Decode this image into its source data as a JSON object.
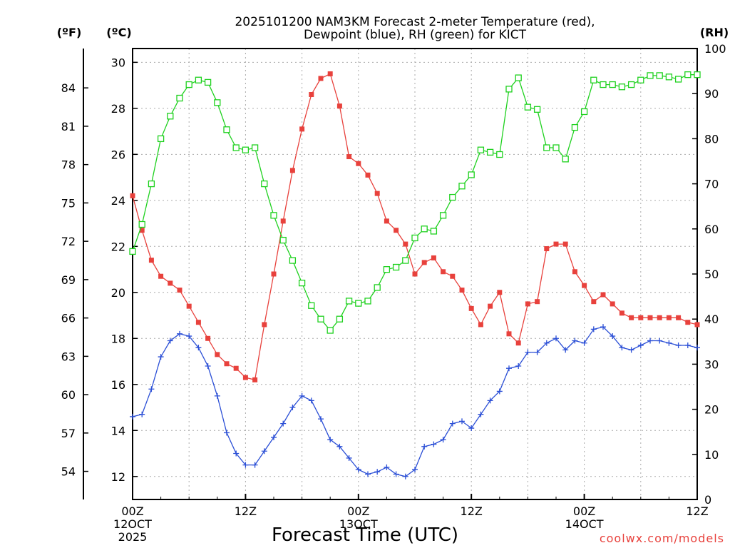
{
  "chart_data": {
    "type": "line",
    "title_line1": "2025101200 NAM3KM Forecast 2-meter Temperature (red),",
    "title_line2": "Dewpoint (blue), RH (green) for KICT",
    "xlabel": "Forecast Time (UTC)",
    "credit": "coolwx.com/models",
    "unit_f": "(ºF)",
    "unit_c": "(ºC)",
    "unit_rh": "(RH)",
    "x_range_hours": [
      0,
      60
    ],
    "y_range_c": [
      11,
      30.6
    ],
    "y_range_rh": [
      0,
      100
    ],
    "x_ticks": [
      {
        "hour": 0,
        "lines": [
          "00Z",
          "12OCT",
          "2025"
        ]
      },
      {
        "hour": 12,
        "lines": [
          "12Z"
        ]
      },
      {
        "hour": 24,
        "lines": [
          "00Z",
          "13OCT"
        ]
      },
      {
        "hour": 36,
        "lines": [
          "12Z"
        ]
      },
      {
        "hour": 48,
        "lines": [
          "00Z",
          "14OCT"
        ]
      },
      {
        "hour": 60,
        "lines": [
          "12Z"
        ]
      }
    ],
    "c_ticks": [
      12,
      14,
      16,
      18,
      20,
      22,
      24,
      26,
      28,
      30
    ],
    "f_ticks": [
      54,
      57,
      60,
      63,
      66,
      69,
      72,
      75,
      78,
      81,
      84
    ],
    "rh_ticks": [
      0,
      10,
      20,
      30,
      40,
      50,
      60,
      70,
      80,
      90,
      100
    ],
    "series": [
      {
        "name": "2-meter Temperature",
        "color": "#e8413c",
        "marker": "filled-square",
        "axis": "celsius",
        "x": [
          0,
          1,
          2,
          3,
          4,
          5,
          6,
          7,
          8,
          9,
          10,
          11,
          12,
          13,
          14,
          15,
          16,
          17,
          18,
          19,
          20,
          21,
          22,
          23,
          24,
          25,
          26,
          27,
          28,
          29,
          30,
          31,
          32,
          33,
          34,
          35,
          36,
          37,
          38,
          39,
          40,
          41,
          42,
          43,
          44,
          45,
          46,
          47,
          48,
          49,
          50,
          51,
          52,
          53,
          54,
          55,
          56,
          57,
          58,
          59,
          60
        ],
        "values": [
          24.2,
          22.7,
          21.4,
          20.7,
          20.4,
          20.1,
          19.4,
          18.7,
          18.0,
          17.3,
          16.9,
          16.7,
          16.3,
          16.2,
          18.6,
          20.8,
          23.1,
          25.3,
          27.1,
          28.6,
          29.3,
          29.5,
          28.1,
          25.9,
          25.6,
          25.1,
          24.3,
          23.1,
          22.7,
          22.1,
          20.8,
          21.3,
          21.5,
          20.9,
          20.7,
          20.1,
          19.3,
          18.6,
          19.4,
          20.0,
          18.2,
          17.8,
          19.5,
          19.6,
          21.9,
          22.1,
          22.1,
          20.9,
          20.3,
          19.6,
          19.9,
          19.5,
          19.1,
          18.9,
          18.9,
          18.9,
          18.9,
          18.9,
          18.9,
          18.7,
          18.6
        ]
      },
      {
        "name": "Dewpoint",
        "color": "#2b4fd6",
        "marker": "plus",
        "axis": "celsius",
        "x": [
          0,
          1,
          2,
          3,
          4,
          5,
          6,
          7,
          8,
          9,
          10,
          11,
          12,
          13,
          14,
          15,
          16,
          17,
          18,
          19,
          20,
          21,
          22,
          23,
          24,
          25,
          26,
          27,
          28,
          29,
          30,
          31,
          32,
          33,
          34,
          35,
          36,
          37,
          38,
          39,
          40,
          41,
          42,
          43,
          44,
          45,
          46,
          47,
          48,
          49,
          50,
          51,
          52,
          53,
          54,
          55,
          56,
          57,
          58,
          59,
          60
        ],
        "values": [
          14.6,
          14.7,
          15.8,
          17.2,
          17.9,
          18.2,
          18.1,
          17.6,
          16.8,
          15.5,
          13.9,
          13.0,
          12.5,
          12.5,
          13.1,
          13.7,
          14.3,
          15.0,
          15.5,
          15.3,
          14.5,
          13.6,
          13.3,
          12.8,
          12.3,
          12.1,
          12.2,
          12.4,
          12.1,
          12.0,
          12.3,
          13.3,
          13.4,
          13.6,
          14.3,
          14.4,
          14.1,
          14.7,
          15.3,
          15.7,
          16.7,
          16.8,
          17.4,
          17.4,
          17.8,
          18.0,
          17.5,
          17.9,
          17.8,
          18.4,
          18.5,
          18.1,
          17.6,
          17.5,
          17.7,
          17.9,
          17.9,
          17.8,
          17.7,
          17.7,
          17.6
        ]
      },
      {
        "name": "RH",
        "color": "#1ed11e",
        "marker": "open-square",
        "axis": "rh",
        "x": [
          0,
          1,
          2,
          3,
          4,
          5,
          6,
          7,
          8,
          9,
          10,
          11,
          12,
          13,
          14,
          15,
          16,
          17,
          18,
          19,
          20,
          21,
          22,
          23,
          24,
          25,
          26,
          27,
          28,
          29,
          30,
          31,
          32,
          33,
          34,
          35,
          36,
          37,
          38,
          39,
          40,
          41,
          42,
          43,
          44,
          45,
          46,
          47,
          48,
          49,
          50,
          51,
          52,
          53,
          54,
          55,
          56,
          57,
          58,
          59,
          60
        ],
        "values": [
          55,
          61,
          70,
          80,
          85,
          89,
          92,
          93,
          92.5,
          88,
          82,
          78,
          77.5,
          78,
          70,
          63,
          57.5,
          53,
          48,
          43,
          40,
          37.5,
          40,
          44,
          43.5,
          44,
          47,
          51,
          51.5,
          53,
          58,
          60,
          59.5,
          63,
          67,
          69.5,
          72,
          77.5,
          77,
          76.5,
          91,
          93.5,
          87,
          86.5,
          78,
          78,
          75.5,
          82.5,
          86,
          93,
          92,
          92,
          91.5,
          92,
          93,
          94,
          94,
          93.7,
          93.2,
          94.2,
          94.2
        ]
      }
    ]
  }
}
